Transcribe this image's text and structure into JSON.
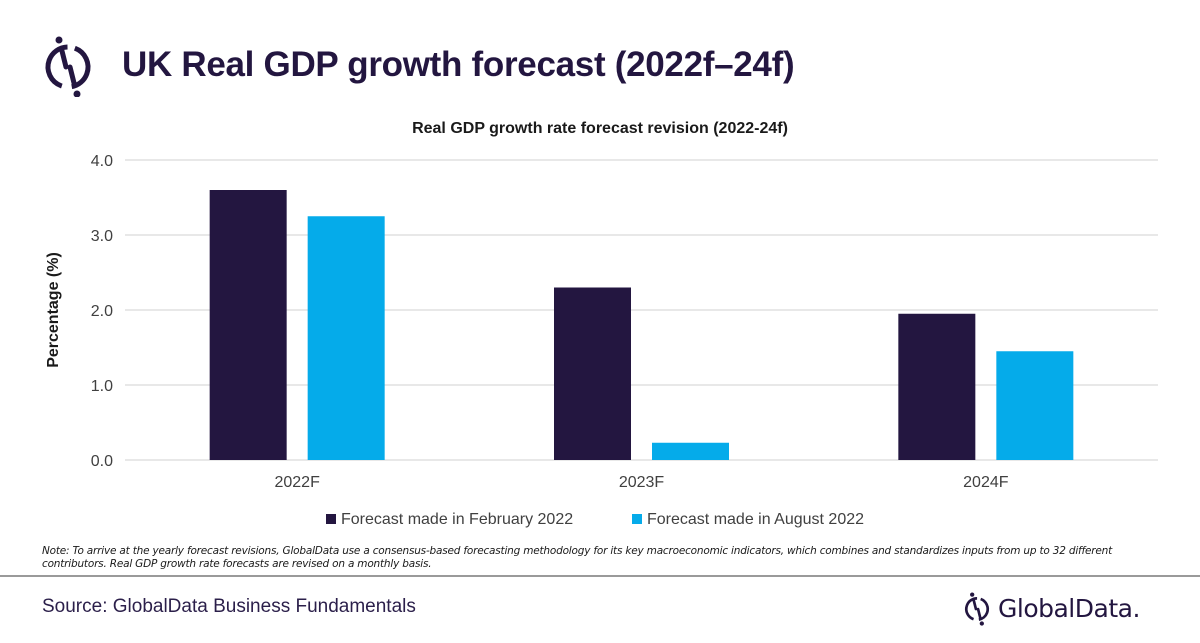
{
  "header": {
    "title": "UK Real GDP growth forecast (2022f–24f)",
    "logo_icon": "globaldata-logo-icon"
  },
  "colors": {
    "primary_dark": "#231640",
    "accent_blue": "#05ABEA",
    "grid": "#d9d9d9"
  },
  "chart_data": {
    "type": "bar",
    "title": "Real GDP growth rate forecast revision (2022-24f)",
    "xlabel": "",
    "ylabel": "Percentage (%)",
    "ylim": [
      0,
      4.0
    ],
    "yticks": [
      "0.0",
      "1.0",
      "2.0",
      "3.0",
      "4.0"
    ],
    "ytick_values": [
      0,
      1,
      2,
      3,
      4
    ],
    "grid": true,
    "legend_position": "bottom",
    "categories": [
      "2022F",
      "2023F",
      "2024F"
    ],
    "series": [
      {
        "name": "Forecast made in February 2022",
        "color": "#231640",
        "values": [
          3.6,
          2.3,
          1.95
        ]
      },
      {
        "name": "Forecast made in August 2022",
        "color": "#05ABEA",
        "values": [
          3.25,
          0.23,
          1.45
        ]
      }
    ]
  },
  "note": "Note: To arrive at the yearly forecast revisions, GlobalData use a consensus-based forecasting methodology for its key macroeconomic indicators, which combines and standardizes inputs from up to 32 different contributors. Real GDP growth rate forecasts are revised on a monthly basis.",
  "footer": {
    "source": "Source: GlobalData Business Fundamentals",
    "brand_name": "GlobalData."
  }
}
